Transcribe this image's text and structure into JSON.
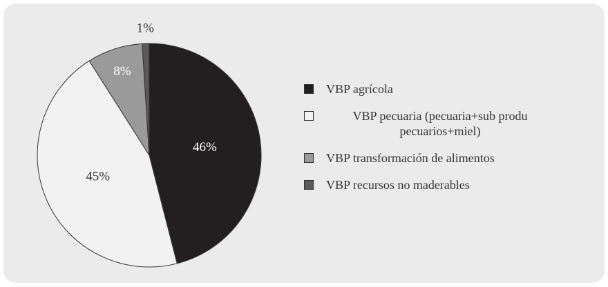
{
  "chart_data": {
    "type": "pie",
    "categories": [
      "VBP agrícola",
      "VBP pecuaria (pecuaria+sub produ pecuarios+miel)",
      "VBP transformación de alimentos",
      "VBP recursos no maderables"
    ],
    "values": [
      46,
      45,
      8,
      1
    ],
    "value_labels": [
      "46%",
      "45%",
      "8%",
      "1%"
    ],
    "colors": [
      "#231f20",
      "#f2f2f2",
      "#9a9a9a",
      "#5a5a5a"
    ]
  }
}
